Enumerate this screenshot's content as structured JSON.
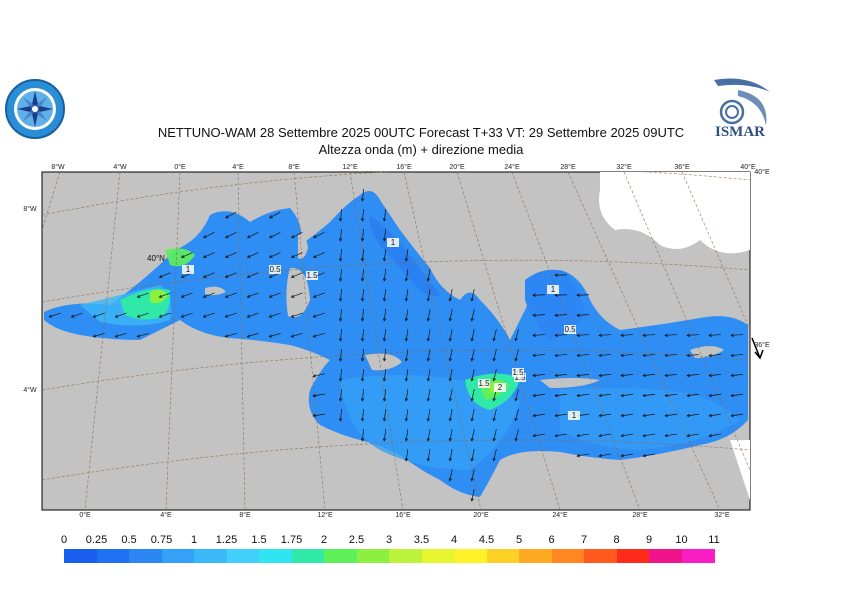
{
  "header": {
    "title_line1": "NETTUNO-WAM  28 Settembre 2025 00UTC Forecast T+33 VT: 29 Settembre 2025 09UTC",
    "title_line2": "Altezza onda (m) + direzione media"
  },
  "logos": {
    "right_logo_text": "ISMAR"
  },
  "axes": {
    "top_ticks": [
      "8°W",
      "4°W",
      "0°E",
      "4°E",
      "8°E",
      "12°E",
      "16°E",
      "20°E",
      "24°E",
      "28°E",
      "32°E",
      "36°E",
      "40°E"
    ],
    "bottom_ticks": [
      "0°E",
      "4°E",
      "8°E",
      "12°E",
      "16°E",
      "20°E",
      "24°E",
      "28°E",
      "32°E"
    ],
    "left_ticks": [
      "8°W",
      "4°W"
    ],
    "right_ticks": [
      "40°E",
      "36°E"
    ],
    "lat_label": "40°N"
  },
  "contour_labels": [
    "1",
    "0.5",
    "1.5",
    "1",
    "1",
    "0.5",
    "1.5",
    "1.5",
    "2",
    "1.5",
    "1"
  ],
  "legend": {
    "labels": [
      "0",
      "0.25",
      "0.5",
      "0.75",
      "1",
      "1.25",
      "1.5",
      "1.75",
      "2",
      "2.5",
      "3",
      "3.5",
      "4",
      "4.5",
      "5",
      "6",
      "7",
      "8",
      "9",
      "10",
      "11"
    ],
    "colors": [
      "#1a5ef0",
      "#2270f2",
      "#2c86f4",
      "#34a0f6",
      "#3bb8f8",
      "#40d0fb",
      "#2fe6f0",
      "#30e8a8",
      "#5ef05a",
      "#8cf040",
      "#bcf23a",
      "#e6f530",
      "#fff22a",
      "#ffd026",
      "#ffaa22",
      "#ff8620",
      "#ff5a1c",
      "#ff2a18",
      "#f0148a",
      "#f81ec4"
    ]
  }
}
